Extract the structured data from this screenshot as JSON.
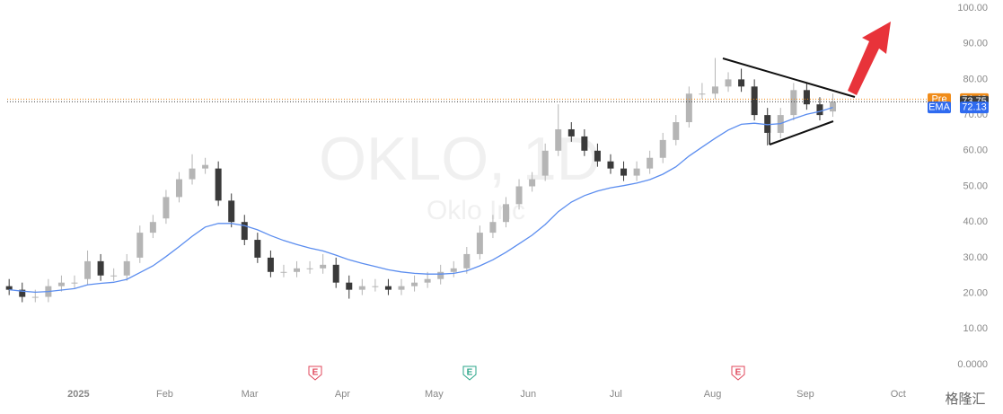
{
  "chart_data": {
    "type": "candlestick",
    "watermark": "OKLO, 1D",
    "watermark_sub": "Oklo Inc",
    "logo": "格隆汇",
    "categories": [
      null,
      null,
      null,
      null,
      null,
      null,
      null,
      null,
      null,
      null,
      null,
      null,
      null,
      null,
      null,
      null,
      null,
      null,
      null,
      null,
      null,
      null,
      null,
      null,
      null,
      null,
      null,
      null,
      null,
      null,
      null,
      null,
      null,
      null,
      null,
      null,
      null,
      null,
      null,
      null,
      null,
      null,
      null,
      null,
      null,
      null,
      null,
      null,
      null,
      null,
      null,
      null,
      null,
      null,
      null,
      null,
      null,
      null,
      null,
      null,
      null,
      null,
      null,
      null
    ],
    "open": [
      22,
      21,
      19,
      19,
      22,
      23,
      24,
      29,
      25,
      25,
      30,
      37,
      41,
      47,
      52,
      55,
      55,
      46,
      40,
      35,
      30,
      26,
      26,
      27,
      27,
      28,
      23,
      21,
      22,
      22,
      21,
      22,
      23,
      24,
      26,
      27,
      31,
      37,
      40,
      45,
      50,
      53,
      60,
      66,
      64,
      60,
      57,
      55,
      53,
      55,
      58,
      63,
      68,
      76,
      76,
      78,
      80,
      78,
      70,
      65,
      70,
      77,
      73,
      71
    ],
    "high": [
      24,
      23,
      21,
      24,
      25,
      25,
      32,
      31,
      27,
      31,
      39,
      42,
      49,
      54,
      59,
      58,
      57,
      48,
      42,
      37,
      32,
      28,
      29,
      29,
      31,
      30,
      25,
      24,
      24,
      24,
      24,
      25,
      26,
      28,
      29,
      33,
      39,
      42,
      47,
      52,
      54,
      62,
      73,
      68,
      66,
      62,
      59,
      57,
      57,
      60,
      65,
      70,
      78,
      79,
      86,
      82,
      83,
      80,
      72,
      72,
      79,
      79,
      75,
      76
    ],
    "low": [
      19.5,
      17.5,
      17.5,
      17.5,
      20.5,
      21.5,
      22.5,
      23.5,
      23.5,
      23.5,
      28.5,
      35.5,
      39.5,
      45.5,
      50.5,
      53.5,
      44.5,
      38.5,
      33.5,
      28.5,
      24.5,
      24.5,
      24.5,
      25.5,
      25.5,
      21.5,
      18.5,
      19.5,
      20.5,
      19.5,
      19.5,
      20.5,
      21.5,
      22.5,
      24.5,
      25.5,
      29.5,
      35.5,
      38.5,
      43.5,
      48.5,
      51.5,
      58.5,
      62.5,
      58.5,
      55.5,
      53.5,
      51.5,
      51.5,
      53.5,
      56.5,
      61.5,
      66.5,
      74.5,
      74.5,
      76.5,
      76.5,
      68.5,
      61.5,
      63.5,
      68.5,
      71.5,
      68.5,
      69.5
    ],
    "close": [
      21,
      19,
      19,
      22,
      23,
      23,
      29,
      25,
      25,
      29,
      37,
      40,
      47,
      52,
      55,
      56,
      46,
      40,
      35,
      30,
      26,
      26,
      27,
      27,
      28,
      23,
      21,
      22,
      22,
      21,
      22,
      23,
      24,
      26,
      27,
      31,
      37,
      40,
      45,
      50,
      52,
      60,
      66,
      64,
      60,
      57,
      55,
      53,
      55,
      58,
      63,
      68,
      76,
      76,
      78,
      80,
      78,
      70,
      65,
      70,
      77,
      73,
      70,
      73.75
    ],
    "up_color": "#b5b5b5",
    "down_color": "#3a3a3a",
    "ema": {
      "name": "EMA",
      "color": "#5b8def",
      "values": [
        21,
        20.6,
        20.3,
        20.5,
        20.9,
        21.3,
        22.4,
        22.8,
        23.1,
        23.9,
        25.8,
        27.7,
        30.3,
        33.1,
        36.0,
        38.6,
        39.6,
        39.6,
        39.0,
        37.8,
        36.2,
        34.8,
        33.7,
        32.7,
        31.9,
        30.7,
        29.4,
        28.4,
        27.5,
        26.6,
        26.0,
        25.6,
        25.4,
        25.4,
        25.6,
        26.3,
        27.7,
        29.4,
        31.5,
        33.9,
        36.3,
        39.3,
        42.9,
        45.6,
        47.4,
        48.7,
        49.6,
        50.2,
        50.9,
        51.9,
        53.4,
        55.5,
        58.5,
        61.0,
        63.5,
        65.8,
        67.4,
        67.7,
        67.3,
        67.6,
        69.0,
        70.2,
        71.0,
        72.13
      ]
    },
    "price_labels": [
      {
        "label": "Pre",
        "value": 74.46,
        "color": "#f08c1a"
      },
      {
        "value": 73.75,
        "color": "#3d3d3d"
      },
      {
        "label": "EMA",
        "value": 72.13,
        "color": "#2f6bf0"
      }
    ],
    "events": [
      {
        "label": "E",
        "color": "#e0475b"
      },
      {
        "label": "E",
        "color": "#2aa588"
      },
      {
        "label": "E",
        "color": "#e0475b"
      }
    ],
    "ylim": [
      0,
      100
    ],
    "yticks": [
      {
        "value": 0,
        "label": "0.0000"
      },
      {
        "value": 10,
        "label": "10.00"
      },
      {
        "value": 20,
        "label": "20.00"
      },
      {
        "value": 30,
        "label": "30.00"
      },
      {
        "value": 40,
        "label": "40.00"
      },
      {
        "value": 50,
        "label": "50.00"
      },
      {
        "value": 60,
        "label": "60.00"
      },
      {
        "value": 70,
        "label": "70.00"
      },
      {
        "value": 80,
        "label": "80.00"
      },
      {
        "value": 90,
        "label": "90.00"
      },
      {
        "value": 100,
        "label": "100.00"
      }
    ],
    "xlim": [
      -0.15,
      71
    ],
    "xticks": [
      {
        "value": 5.3,
        "label": "2025"
      },
      {
        "value": 11.9,
        "label": "Feb"
      },
      {
        "value": 18.4,
        "label": "Mar"
      },
      {
        "value": 25.5,
        "label": "Apr"
      },
      {
        "value": 32.5,
        "label": "May"
      },
      {
        "value": 39.7,
        "label": "Jun"
      },
      {
        "value": 46.4,
        "label": "Jul"
      },
      {
        "value": 53.8,
        "label": "Aug"
      },
      {
        "value": 60.9,
        "label": "Sep"
      },
      {
        "value": 68,
        "label": "Oct"
      }
    ]
  }
}
